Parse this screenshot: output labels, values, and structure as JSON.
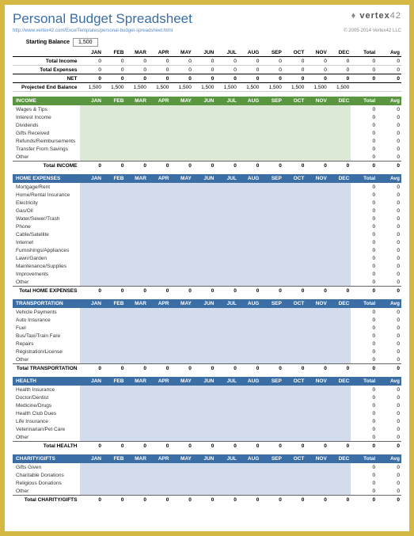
{
  "title": "Personal Budget Spreadsheet",
  "url": "http://www.vertex42.com/ExcelTemplates/personal-budget-spreadsheet.html",
  "logo_bold": "vertex",
  "logo_num": "42",
  "copyright": "© 2005-2014 Vertex42 LLC",
  "starting_balance_label": "Starting Balance",
  "starting_balance_value": "1,500",
  "months": [
    "JAN",
    "FEB",
    "MAR",
    "APR",
    "MAY",
    "JUN",
    "JUL",
    "AUG",
    "SEP",
    "OCT",
    "NOV",
    "DEC"
  ],
  "total_col_label": "Total",
  "avg_col_label": "Avg",
  "summary_rows": [
    {
      "label": "Total Income",
      "vals": [
        "0",
        "0",
        "0",
        "0",
        "0",
        "0",
        "0",
        "0",
        "0",
        "0",
        "0",
        "0"
      ],
      "total": "0",
      "avg": "0",
      "bold": true
    },
    {
      "label": "Total Expenses",
      "vals": [
        "0",
        "0",
        "0",
        "0",
        "0",
        "0",
        "0",
        "0",
        "0",
        "0",
        "0",
        "0"
      ],
      "total": "0",
      "avg": "0",
      "bold": true
    },
    {
      "label": "NET",
      "vals": [
        "0",
        "0",
        "0",
        "0",
        "0",
        "0",
        "0",
        "0",
        "0",
        "0",
        "0",
        "0"
      ],
      "total": "0",
      "avg": "0",
      "net": true
    },
    {
      "label": "Projected End Balance",
      "vals": [
        "1,500",
        "1,500",
        "1,500",
        "1,500",
        "1,500",
        "1,500",
        "1,500",
        "1,500",
        "1,500",
        "1,500",
        "1,500",
        "1,500"
      ],
      "total": "",
      "avg": "",
      "bold": true
    }
  ],
  "sections": [
    {
      "name": "INCOME",
      "head_bg": "#5a9640",
      "cell_bg": "#dbe9d6",
      "total_label": "Total INCOME",
      "rows": [
        "Wages & Tips",
        "Interest Income",
        "Dividends",
        "Gifts Received",
        "Refunds/Reimbursements",
        "Transfer From Savings",
        "Other"
      ]
    },
    {
      "name": "HOME EXPENSES",
      "head_bg": "#3b6ea5",
      "cell_bg": "#d3dcec",
      "total_label": "Total HOME EXPENSES",
      "rows": [
        "Mortgage/Rent",
        "Home/Rental Insurance",
        "Electricity",
        "Gas/Oil",
        "Water/Sewer/Trash",
        "Phone",
        "Cable/Satellite",
        "Internet",
        "Furnishings/Appliances",
        "Lawn/Garden",
        "Maintenance/Supplies",
        "Improvements",
        "Other"
      ]
    },
    {
      "name": "TRANSPORTATION",
      "head_bg": "#3b6ea5",
      "cell_bg": "#d3dcec",
      "total_label": "Total TRANSPORTATION",
      "rows": [
        "Vehicle Payments",
        "Auto Insurance",
        "Fuel",
        "Bus/Taxi/Train Fare",
        "Repairs",
        "Registration/License",
        "Other"
      ]
    },
    {
      "name": "HEALTH",
      "head_bg": "#3b6ea5",
      "cell_bg": "#d3dcec",
      "total_label": "Total HEALTH",
      "rows": [
        "Health Insurance",
        "Doctor/Dentist",
        "Medicine/Drugs",
        "Health Club Dues",
        "Life Insurance",
        "Veterinarian/Pet Care",
        "Other"
      ]
    },
    {
      "name": "CHARITY/GIFTS",
      "head_bg": "#3b6ea5",
      "cell_bg": "#d3dcec",
      "total_label": "Total CHARITY/GIFTS",
      "rows": [
        "Gifts Given",
        "Charitable Donations",
        "Religious Donations",
        "Other"
      ]
    }
  ],
  "zero": "0"
}
